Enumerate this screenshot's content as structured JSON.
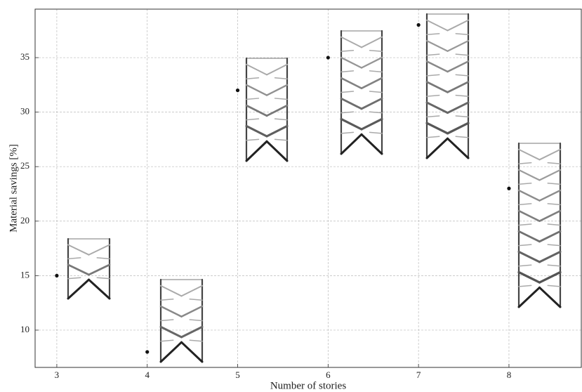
{
  "chart_data": {
    "type": "scatter",
    "x_label": "Number of stories",
    "y_label": "Material savings [%]",
    "x": [
      3,
      4,
      5,
      6,
      7,
      8
    ],
    "values": [
      15,
      8,
      32,
      35,
      38,
      23
    ],
    "color": "#111111",
    "xlim": [
      2.76,
      8.8
    ],
    "ylim": [
      6.58,
      39.45
    ],
    "xticks": [
      3,
      4,
      5,
      6,
      7,
      8
    ],
    "yticks": [
      10,
      15,
      20,
      25,
      30,
      35
    ],
    "grid": true
  }
}
